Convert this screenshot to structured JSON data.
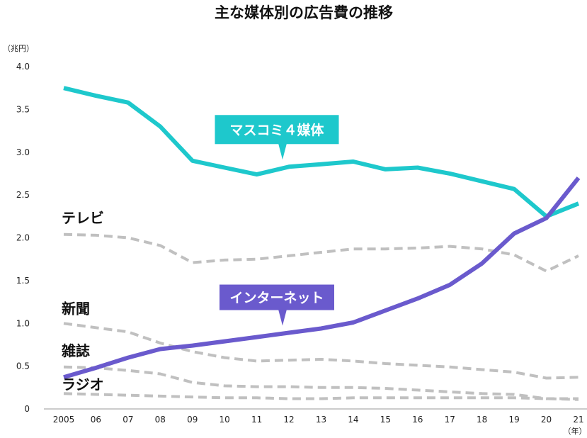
{
  "chart_data": {
    "type": "line",
    "title": "主な媒体別の広告費の推移",
    "ylabel": "（兆円）",
    "xlabel": "（年）",
    "ylim": [
      0,
      4.0
    ],
    "yticks": [
      "0",
      "0.5",
      "1.0",
      "1.5",
      "2.0",
      "2.5",
      "3.0",
      "3.5",
      "4.0"
    ],
    "categories": [
      "2005",
      "06",
      "07",
      "08",
      "09",
      "10",
      "11",
      "12",
      "13",
      "14",
      "15",
      "16",
      "17",
      "18",
      "19",
      "20",
      "21"
    ],
    "grid": false,
    "series": [
      {
        "name": "マスコミ４媒体",
        "style": "solid",
        "color": "#1ec8cc",
        "values": [
          3.75,
          3.66,
          3.58,
          3.3,
          2.9,
          2.82,
          2.74,
          2.83,
          2.86,
          2.89,
          2.8,
          2.82,
          2.75,
          2.66,
          2.57,
          2.25,
          2.4
        ]
      },
      {
        "name": "インターネット",
        "style": "solid",
        "color": "#6a5acd",
        "values": [
          0.37,
          0.48,
          0.6,
          0.7,
          0.74,
          0.79,
          0.84,
          0.89,
          0.94,
          1.01,
          1.15,
          1.29,
          1.45,
          1.7,
          2.05,
          2.23,
          2.7
        ]
      },
      {
        "name": "テレビ",
        "style": "dashed",
        "color": "#c0c0c0",
        "values": [
          2.04,
          2.03,
          2.0,
          1.91,
          1.71,
          1.74,
          1.75,
          1.79,
          1.83,
          1.87,
          1.87,
          1.88,
          1.9,
          1.87,
          1.8,
          1.61,
          1.79
        ]
      },
      {
        "name": "新聞",
        "style": "dashed",
        "color": "#c0c0c0",
        "values": [
          1.0,
          0.95,
          0.9,
          0.77,
          0.67,
          0.6,
          0.56,
          0.57,
          0.58,
          0.56,
          0.53,
          0.51,
          0.49,
          0.46,
          0.43,
          0.36,
          0.37
        ]
      },
      {
        "name": "雑誌",
        "style": "dashed",
        "color": "#c0c0c0",
        "values": [
          0.49,
          0.48,
          0.45,
          0.41,
          0.31,
          0.27,
          0.26,
          0.26,
          0.25,
          0.25,
          0.24,
          0.22,
          0.2,
          0.18,
          0.17,
          0.12,
          0.12
        ]
      },
      {
        "name": "ラジオ",
        "style": "dashed",
        "color": "#c0c0c0",
        "values": [
          0.18,
          0.17,
          0.16,
          0.15,
          0.14,
          0.13,
          0.13,
          0.12,
          0.12,
          0.13,
          0.13,
          0.13,
          0.13,
          0.13,
          0.13,
          0.12,
          0.11
        ]
      }
    ],
    "callouts": [
      {
        "series": "マスコミ４媒体",
        "text": "マスコミ４媒体",
        "color": "#1ec8cc"
      },
      {
        "series": "インターネット",
        "text": "インターネット",
        "color": "#6a5acd"
      }
    ],
    "side_labels": [
      "テレビ",
      "新聞",
      "雑誌",
      "ラジオ"
    ]
  }
}
